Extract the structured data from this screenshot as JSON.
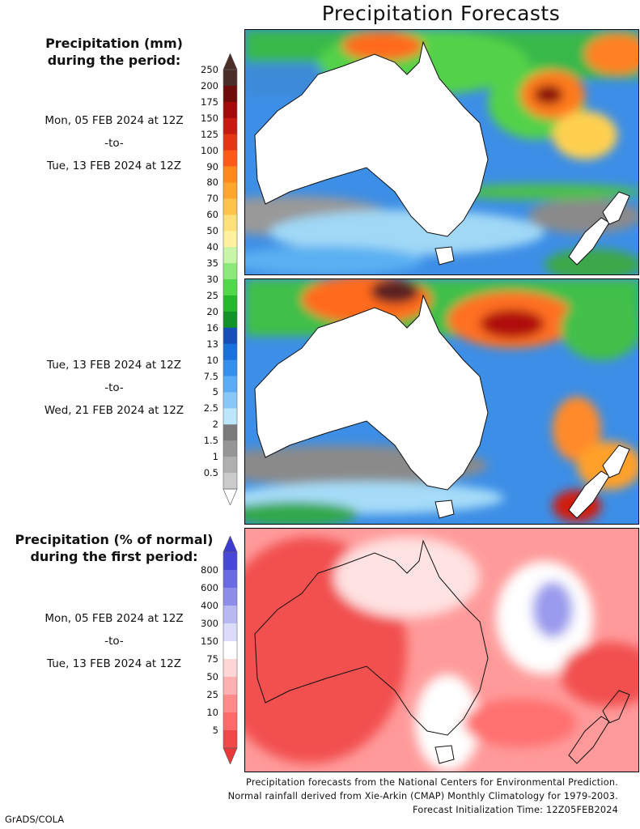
{
  "title": "Precipitation Forecasts",
  "amount_legend": {
    "title_line1": "Precipitation (mm)",
    "title_line2": "during the period:",
    "ticks": [
      "250",
      "200",
      "175",
      "150",
      "125",
      "100",
      "90",
      "80",
      "70",
      "60",
      "50",
      "40",
      "35",
      "30",
      "25",
      "20",
      "16",
      "13",
      "10",
      "7.5",
      "5",
      "2.5",
      "2",
      "1.5",
      "1",
      "0.5"
    ],
    "colors": [
      "#4a2e27",
      "#6e0c0c",
      "#a40a0a",
      "#c81a10",
      "#e63414",
      "#ff5a1a",
      "#ff8a1c",
      "#ffa62c",
      "#ffc24a",
      "#ffe07a",
      "#fff29e",
      "#c8f5a6",
      "#8de87a",
      "#52d84a",
      "#26b92c",
      "#14922a",
      "#1450b8",
      "#1a70dc",
      "#3490ec",
      "#5aacf4",
      "#88c8f8",
      "#bce6fc",
      "#7a7a7a",
      "#969696",
      "#b0b0b0",
      "#cbcbcb"
    ],
    "bottom_color": "#ffffff"
  },
  "period1": {
    "start": "Mon, 05 FEB 2024 at 12Z",
    "sep": "-to-",
    "end": "Tue, 13 FEB 2024 at 12Z"
  },
  "period2": {
    "start": "Tue, 13 FEB 2024 at 12Z",
    "sep": "-to-",
    "end": "Wed, 21 FEB 2024 at 12Z"
  },
  "percent_legend": {
    "title_line1": "Precipitation (% of normal)",
    "title_line2": "during the first period:",
    "ticks": [
      "800",
      "600",
      "400",
      "300",
      "150",
      "75",
      "50",
      "25",
      "10",
      "5"
    ],
    "colors": [
      "#4848d8",
      "#6a6ae2",
      "#8e8eea",
      "#b8b8f2",
      "#dcdcfa",
      "#ffffff",
      "#ffd6d6",
      "#ffb0b0",
      "#ff8a8a",
      "#ff6a6a",
      "#f04848"
    ],
    "bottom_color": "#e83838",
    "top_color": "#3c3cd0"
  },
  "period3": {
    "start": "Mon, 05 FEB 2024 at 12Z",
    "sep": "-to-",
    "end": "Tue, 13 FEB 2024 at 12Z"
  },
  "footer": {
    "line1": "Precipitation forecasts from the National Centers for Environmental Prediction.",
    "line2": "Normal rainfall derived from Xie-Arkin (CMAP) Monthly Climatology for 1979-2003.",
    "line3": "Forecast Initialization Time: 12Z05FEB2024"
  },
  "credit": "GrADS/COLA"
}
